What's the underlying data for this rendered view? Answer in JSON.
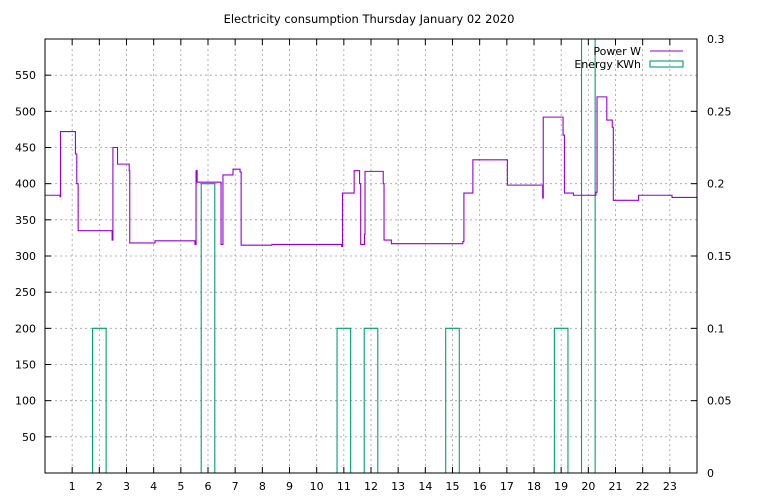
{
  "chart_data": {
    "type": "line",
    "title": "Electricity consumption Thursday January 02 2020",
    "xlabel": "",
    "ylabel": "",
    "y2label": "",
    "xlim": [
      0,
      24
    ],
    "ylim": [
      0,
      600
    ],
    "y2lim": [
      0,
      0.3
    ],
    "grid": true,
    "legend_position": "top-right",
    "x_ticks": [
      "1",
      "2",
      "3",
      "4",
      "5",
      "6",
      "7",
      "8",
      "9",
      "10",
      "11",
      "12",
      "13",
      "14",
      "15",
      "16",
      "17",
      "18",
      "19",
      "20",
      "21",
      "22",
      "23"
    ],
    "y_ticks": [
      "50",
      "100",
      "150",
      "200",
      "250",
      "300",
      "350",
      "400",
      "450",
      "500",
      "550"
    ],
    "y2_ticks": [
      "0",
      "0.05",
      "0.1",
      "0.15",
      "0.2",
      "0.25",
      "0.3"
    ],
    "series": [
      {
        "name": "Power W",
        "axis": "y",
        "style": "steps",
        "color": "#9400d3",
        "points": [
          [
            0.0,
            384
          ],
          [
            0.55,
            382
          ],
          [
            0.57,
            472
          ],
          [
            1.1,
            472
          ],
          [
            1.12,
            441
          ],
          [
            1.17,
            400
          ],
          [
            1.22,
            335
          ],
          [
            2.45,
            335
          ],
          [
            2.47,
            322
          ],
          [
            2.5,
            450
          ],
          [
            2.65,
            450
          ],
          [
            2.67,
            427
          ],
          [
            3.08,
            427
          ],
          [
            3.1,
            418
          ],
          [
            3.12,
            318
          ],
          [
            4.0,
            318
          ],
          [
            4.05,
            321
          ],
          [
            5.5,
            321
          ],
          [
            5.52,
            316
          ],
          [
            5.56,
            418
          ],
          [
            5.6,
            402
          ],
          [
            6.45,
            402
          ],
          [
            6.48,
            316
          ],
          [
            6.52,
            316
          ],
          [
            6.55,
            412
          ],
          [
            6.9,
            412
          ],
          [
            6.92,
            420
          ],
          [
            7.15,
            420
          ],
          [
            7.18,
            416
          ],
          [
            7.22,
            315
          ],
          [
            8.3,
            315
          ],
          [
            8.35,
            316
          ],
          [
            10.9,
            316
          ],
          [
            10.92,
            313
          ],
          [
            10.95,
            387
          ],
          [
            11.35,
            387
          ],
          [
            11.38,
            418
          ],
          [
            11.55,
            418
          ],
          [
            11.58,
            400
          ],
          [
            11.62,
            316
          ],
          [
            11.72,
            316
          ],
          [
            11.76,
            330
          ],
          [
            11.78,
            417
          ],
          [
            12.42,
            417
          ],
          [
            12.45,
            400
          ],
          [
            12.48,
            322
          ],
          [
            12.72,
            322
          ],
          [
            12.75,
            317
          ],
          [
            15.35,
            317
          ],
          [
            15.38,
            320
          ],
          [
            15.42,
            387
          ],
          [
            15.72,
            387
          ],
          [
            15.75,
            433
          ],
          [
            17.0,
            433
          ],
          [
            17.02,
            398
          ],
          [
            18.3,
            398
          ],
          [
            18.32,
            380
          ],
          [
            18.34,
            492
          ],
          [
            19.05,
            492
          ],
          [
            19.07,
            467
          ],
          [
            19.12,
            387
          ],
          [
            19.42,
            387
          ],
          [
            19.45,
            384
          ],
          [
            20.25,
            384
          ],
          [
            20.28,
            388
          ],
          [
            20.32,
            520
          ],
          [
            20.65,
            520
          ],
          [
            20.68,
            488
          ],
          [
            20.85,
            488
          ],
          [
            20.88,
            478
          ],
          [
            20.92,
            377
          ],
          [
            21.82,
            377
          ],
          [
            21.85,
            384
          ],
          [
            22.1,
            384
          ],
          [
            23.05,
            384
          ],
          [
            23.08,
            381
          ],
          [
            24.0,
            381
          ]
        ]
      },
      {
        "name": "Energy KWh",
        "axis": "y2",
        "style": "boxes",
        "color": "#009e73",
        "bars": [
          {
            "x": 2.0,
            "value": 0.1
          },
          {
            "x": 6.0,
            "value": 0.2
          },
          {
            "x": 11.0,
            "value": 0.1
          },
          {
            "x": 12.0,
            "value": 0.1
          },
          {
            "x": 15.0,
            "value": 0.1
          },
          {
            "x": 19.0,
            "value": 0.1
          },
          {
            "x": 20.0,
            "value": 0.3
          }
        ]
      }
    ]
  }
}
